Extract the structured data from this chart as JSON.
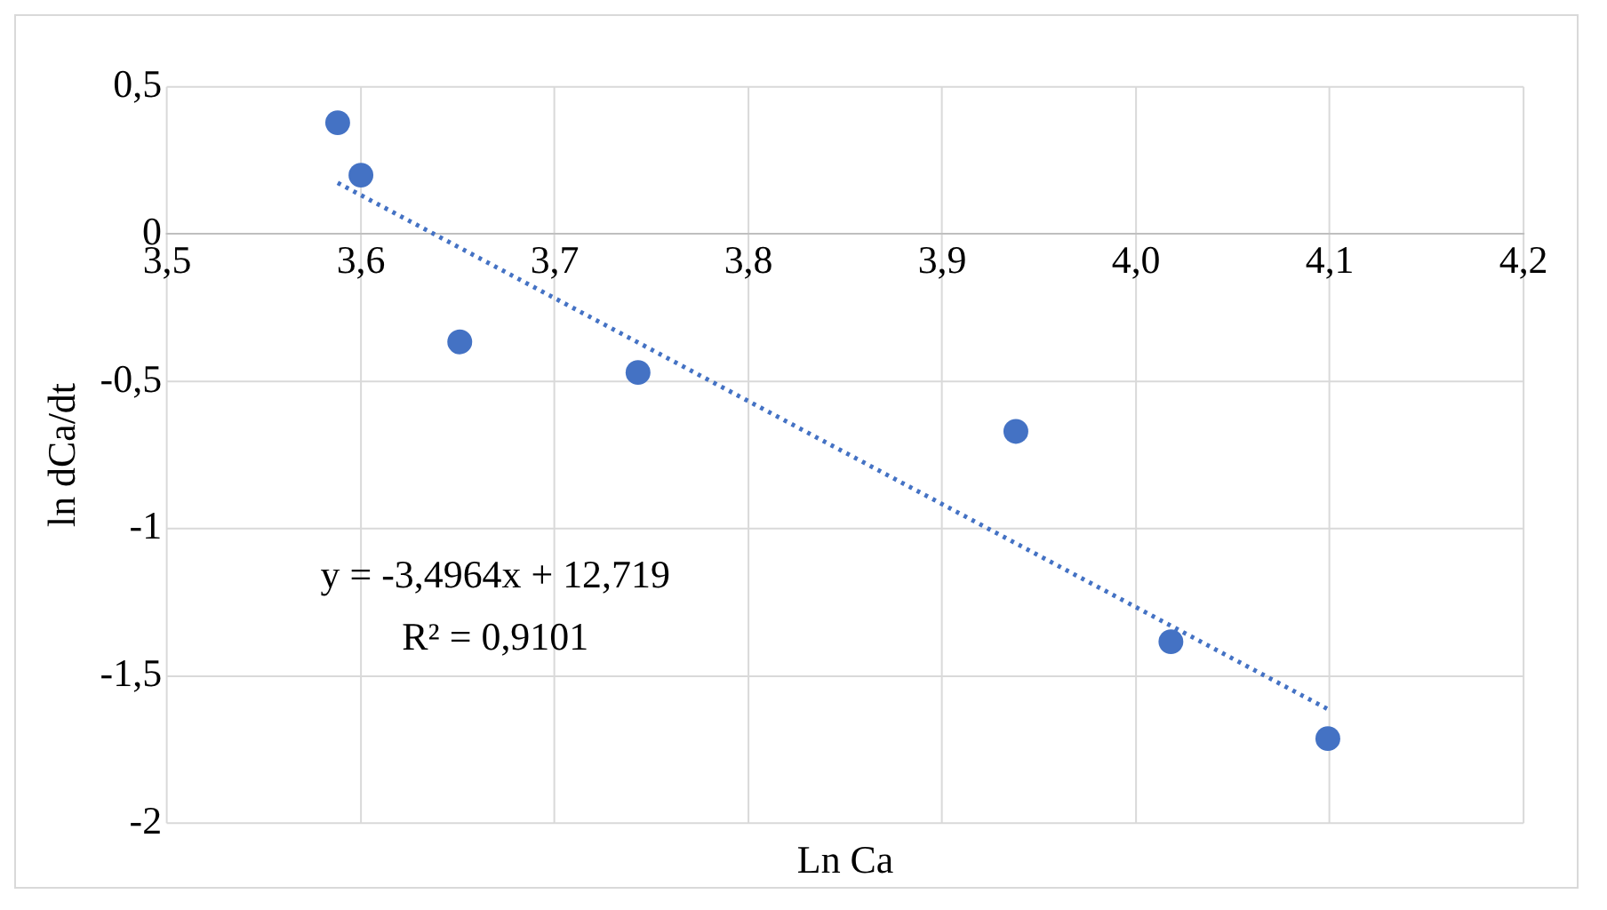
{
  "chart_data": {
    "type": "scatter",
    "xlabel": "Ln Ca",
    "ylabel": "ln dCa/dt",
    "marker": "circle",
    "grid": true,
    "legend": false,
    "xlim": [
      3.5,
      4.2
    ],
    "xticks": [
      {
        "value": 3.5,
        "label": "3,5"
      },
      {
        "value": 3.6,
        "label": "3,6"
      },
      {
        "value": 3.7,
        "label": "3,7"
      },
      {
        "value": 3.8,
        "label": "3,8"
      },
      {
        "value": 3.9,
        "label": "3,9"
      },
      {
        "value": 4.0,
        "label": "4,0"
      },
      {
        "value": 4.1,
        "label": "4,1"
      },
      {
        "value": 4.2,
        "label": "4,2"
      }
    ],
    "ylim": [
      -2,
      0.5
    ],
    "yticks": [
      {
        "value": -2,
        "label": "-2"
      },
      {
        "value": -1.5,
        "label": "-1,5"
      },
      {
        "value": -1,
        "label": "-1"
      },
      {
        "value": -0.5,
        "label": "-0,5"
      },
      {
        "value": 0,
        "label": "0"
      },
      {
        "value": 0.5,
        "label": "0,5"
      }
    ],
    "series": [
      {
        "type": "scatter",
        "color": "#4472c4",
        "x": [
          3.588,
          3.6,
          3.651,
          3.743,
          3.938,
          4.018,
          4.099
        ],
        "values": [
          0.378,
          0.2,
          -0.366,
          -0.47,
          -0.67,
          -1.384,
          -1.713
        ]
      },
      {
        "type": "line",
        "color": "#4472c4",
        "line_style": "dotted",
        "marker": "none",
        "x": [
          3.588,
          4.099
        ],
        "values": [
          0.174,
          -1.613
        ]
      }
    ],
    "annotations": [
      "y = -3,4964x + 12,719",
      "R² = 0,9101"
    ]
  }
}
